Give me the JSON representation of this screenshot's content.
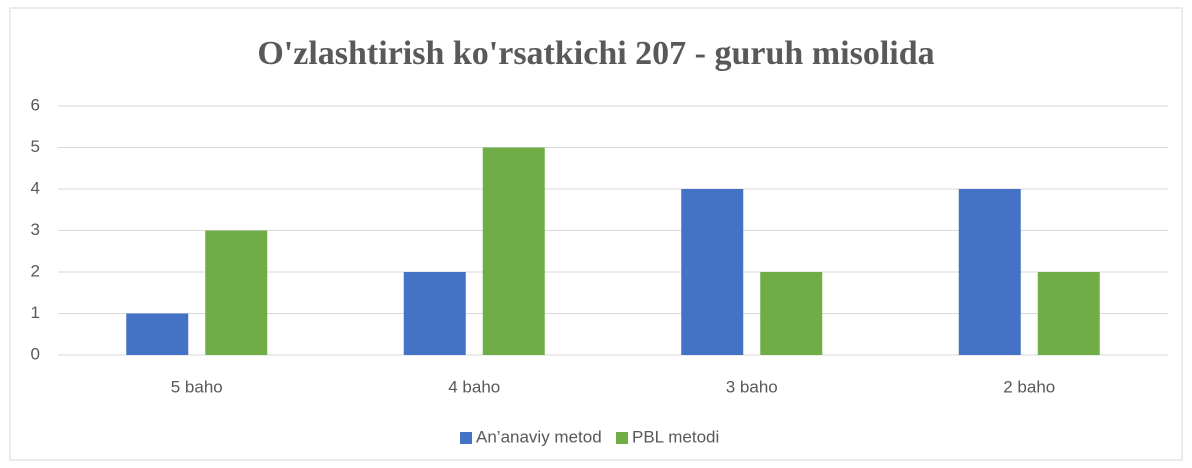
{
  "chart_data": {
    "type": "bar",
    "title": "O'zlashtirish ko'rsatkichi 207 - guruh misolida",
    "categories": [
      "5 baho",
      "4 baho",
      "3 baho",
      "2 baho"
    ],
    "series": [
      {
        "name": "An’anaviy metod",
        "color": "#4472c4",
        "values": [
          1,
          2,
          4,
          4
        ]
      },
      {
        "name": "PBL metodi",
        "color": "#70ad47",
        "values": [
          3,
          5,
          2,
          2
        ]
      }
    ],
    "ylim": [
      0,
      6
    ],
    "yticks": [
      0,
      1,
      2,
      3,
      4,
      5,
      6
    ],
    "grid": true,
    "legend": "bottom"
  }
}
